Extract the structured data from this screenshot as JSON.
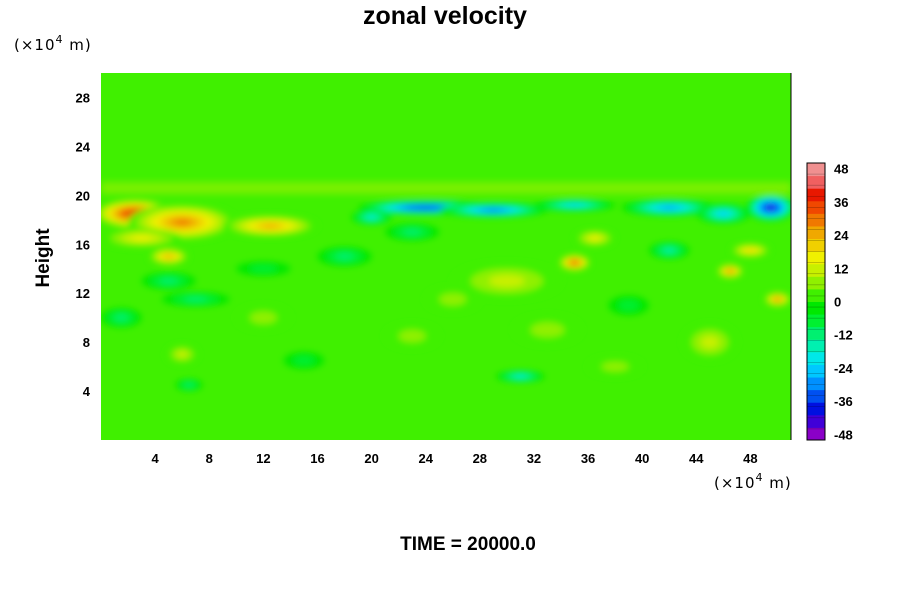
{
  "chart_data": {
    "type": "heatmap",
    "title": "zonal velocity",
    "ylabel": "Height",
    "xlabel": "",
    "x_unit": {
      "prefix": "(×10",
      "exp": "4",
      "suffix": " m)"
    },
    "y_unit": {
      "prefix": "(×10",
      "exp": "4",
      "suffix": " m)"
    },
    "xlim": [
      0,
      51
    ],
    "ylim": [
      0,
      30
    ],
    "x_ticks": [
      4,
      8,
      12,
      16,
      20,
      24,
      28,
      32,
      36,
      40,
      44,
      48
    ],
    "y_ticks": [
      4,
      8,
      12,
      16,
      20,
      24,
      28
    ],
    "colorbar": {
      "range": [
        -50,
        50
      ],
      "step": 4,
      "tick_values": [
        48,
        36,
        24,
        12,
        0,
        -12,
        -24,
        -36,
        -48
      ],
      "colors": [
        "#8a00c8",
        "#4000d8",
        "#0010e0",
        "#0050f0",
        "#0090ff",
        "#00c8ff",
        "#00e8e8",
        "#00f0b0",
        "#00f070",
        "#00f030",
        "#00e800",
        "#40f000",
        "#90f000",
        "#c8f000",
        "#f0f000",
        "#f0d000",
        "#f0a800",
        "#f07800",
        "#f04800",
        "#e81800",
        "#f06060",
        "#f09090"
      ]
    },
    "background_value": 0,
    "features": [
      {
        "x": 2.5,
        "y": 18.5,
        "rx": 3.0,
        "ry": 1.2,
        "value": 38
      },
      {
        "x": 6.0,
        "y": 17.8,
        "rx": 4.0,
        "ry": 1.5,
        "value": 26
      },
      {
        "x": 12.5,
        "y": 17.5,
        "rx": 3.5,
        "ry": 0.9,
        "value": 24
      },
      {
        "x": 3.0,
        "y": 16.5,
        "rx": 3.0,
        "ry": 0.8,
        "value": 14
      },
      {
        "x": 5.0,
        "y": 15.0,
        "rx": 1.5,
        "ry": 0.7,
        "value": 22
      },
      {
        "x": 24.0,
        "y": 19.0,
        "rx": 5.0,
        "ry": 0.6,
        "value": -40
      },
      {
        "x": 29.0,
        "y": 18.8,
        "rx": 4.0,
        "ry": 0.6,
        "value": -30
      },
      {
        "x": 35.0,
        "y": 19.2,
        "rx": 3.0,
        "ry": 0.5,
        "value": -22
      },
      {
        "x": 42.0,
        "y": 19.0,
        "rx": 3.5,
        "ry": 0.7,
        "value": -26
      },
      {
        "x": 49.5,
        "y": 19.0,
        "rx": 1.8,
        "ry": 1.1,
        "value": -42
      },
      {
        "x": 46.0,
        "y": 18.5,
        "rx": 2.0,
        "ry": 0.8,
        "value": -24
      },
      {
        "x": 20.0,
        "y": 18.2,
        "rx": 1.5,
        "ry": 0.6,
        "value": -18
      },
      {
        "x": 35.0,
        "y": 14.5,
        "rx": 1.2,
        "ry": 0.7,
        "value": 32
      },
      {
        "x": 36.5,
        "y": 16.5,
        "rx": 1.5,
        "ry": 0.7,
        "value": 16
      },
      {
        "x": 46.5,
        "y": 13.8,
        "rx": 1.0,
        "ry": 0.6,
        "value": 28
      },
      {
        "x": 50.0,
        "y": 11.5,
        "rx": 1.0,
        "ry": 0.6,
        "value": 28
      },
      {
        "x": 48.0,
        "y": 15.5,
        "rx": 1.5,
        "ry": 0.6,
        "value": 18
      },
      {
        "x": 30.0,
        "y": 13.0,
        "rx": 4.0,
        "ry": 1.5,
        "value": 10
      },
      {
        "x": 33.0,
        "y": 9.0,
        "rx": 2.5,
        "ry": 1.2,
        "value": 9
      },
      {
        "x": 18.0,
        "y": 15.0,
        "rx": 2.0,
        "ry": 0.8,
        "value": -12
      },
      {
        "x": 23.0,
        "y": 17.0,
        "rx": 2.0,
        "ry": 0.7,
        "value": -10
      },
      {
        "x": 5.0,
        "y": 13.0,
        "rx": 2.0,
        "ry": 0.7,
        "value": -10
      },
      {
        "x": 7.0,
        "y": 11.5,
        "rx": 2.5,
        "ry": 0.6,
        "value": -12
      },
      {
        "x": 12.0,
        "y": 14.0,
        "rx": 2.0,
        "ry": 0.6,
        "value": -9
      },
      {
        "x": 1.5,
        "y": 10.0,
        "rx": 1.5,
        "ry": 0.8,
        "value": -10
      },
      {
        "x": 6.0,
        "y": 7.0,
        "rx": 1.2,
        "ry": 0.8,
        "value": 12
      },
      {
        "x": 6.5,
        "y": 4.5,
        "rx": 1.0,
        "ry": 0.5,
        "value": -10
      },
      {
        "x": 31.0,
        "y": 5.2,
        "rx": 1.8,
        "ry": 0.5,
        "value": -18
      },
      {
        "x": 23.0,
        "y": 8.5,
        "rx": 2.0,
        "ry": 1.0,
        "value": 8
      },
      {
        "x": 45.0,
        "y": 8.0,
        "rx": 2.0,
        "ry": 1.5,
        "value": 10
      },
      {
        "x": 39.0,
        "y": 11.0,
        "rx": 1.5,
        "ry": 0.8,
        "value": -9
      },
      {
        "x": 42.0,
        "y": 15.5,
        "rx": 1.5,
        "ry": 0.7,
        "value": -14
      },
      {
        "x": 12.0,
        "y": 10.0,
        "rx": 2.0,
        "ry": 1.0,
        "value": 7
      },
      {
        "x": 26.0,
        "y": 11.5,
        "rx": 2.0,
        "ry": 1.0,
        "value": 8
      },
      {
        "x": 15.0,
        "y": 6.5,
        "rx": 1.5,
        "ry": 0.7,
        "value": -7
      },
      {
        "x": 38.0,
        "y": 6.0,
        "rx": 2.0,
        "ry": 0.8,
        "value": 7
      }
    ],
    "stratification_band": {
      "y": 20.6,
      "half_width": 0.5,
      "value": 5
    }
  },
  "footer": {
    "time_text": "TIME = 20000.0"
  }
}
